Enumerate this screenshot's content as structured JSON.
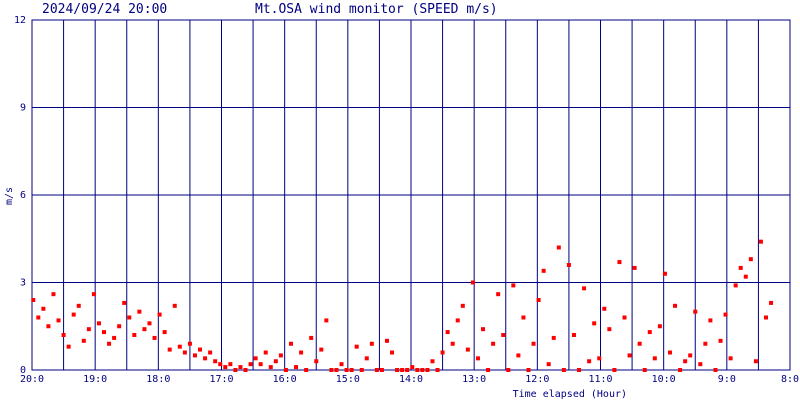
{
  "chart_data": {
    "type": "scatter",
    "timestamp": "2024/09/24 20:00",
    "title": "Mt.OSA wind monitor (SPEED m/s)",
    "ylabel": "m/s",
    "xlabel": "Time elapsed (Hour)",
    "color": "#ff0000",
    "grid_color": "#000080",
    "grid": true,
    "xlim": [
      0,
      12
    ],
    "ylim": [
      0,
      12
    ],
    "yticks": [
      0,
      3,
      6,
      9,
      12
    ],
    "xticks": [
      {
        "value": 0,
        "label": "20:0"
      },
      {
        "value": 1,
        "label": "19:0"
      },
      {
        "value": 2,
        "label": "18:0"
      },
      {
        "value": 3,
        "label": "17:0"
      },
      {
        "value": 4,
        "label": "16:0"
      },
      {
        "value": 5,
        "label": "15:0"
      },
      {
        "value": 6,
        "label": "14:0"
      },
      {
        "value": 7,
        "label": "13:0"
      },
      {
        "value": 8,
        "label": "12:0"
      },
      {
        "value": 9,
        "label": "11:0"
      },
      {
        "value": 10,
        "label": "10:0"
      },
      {
        "value": 11,
        "label": "9:0"
      },
      {
        "value": 12,
        "label": "8:0"
      }
    ],
    "xgrid": [
      0.5,
      1.5,
      2.5,
      3.5,
      4.5,
      5.5,
      6.5,
      7.5,
      8.5,
      9.5,
      10.5,
      11.5
    ],
    "x": [
      0.02,
      0.1,
      0.18,
      0.26,
      0.34,
      0.42,
      0.5,
      0.58,
      0.66,
      0.74,
      0.82,
      0.9,
      0.98,
      1.06,
      1.14,
      1.22,
      1.3,
      1.38,
      1.46,
      1.54,
      1.62,
      1.7,
      1.78,
      1.86,
      1.94,
      2.02,
      2.1,
      2.18,
      2.26,
      2.34,
      2.42,
      2.5,
      2.58,
      2.66,
      2.74,
      2.82,
      2.9,
      2.98,
      3.06,
      3.14,
      3.22,
      3.3,
      3.38,
      3.46,
      3.54,
      3.62,
      3.7,
      3.78,
      3.86,
      3.94,
      4.02,
      4.1,
      4.18,
      4.26,
      4.34,
      4.42,
      4.5,
      4.58,
      4.66,
      4.74,
      4.82,
      4.9,
      4.98,
      5.06,
      5.14,
      5.22,
      5.3,
      5.38,
      5.46,
      5.54,
      5.62,
      5.7,
      5.78,
      5.86,
      5.94,
      6.02,
      6.1,
      6.18,
      6.26,
      6.34,
      6.42,
      6.5,
      6.58,
      6.66,
      6.74,
      6.82,
      6.9,
      6.98,
      7.06,
      7.14,
      7.22,
      7.3,
      7.38,
      7.46,
      7.54,
      7.62,
      7.7,
      7.78,
      7.86,
      7.94,
      8.02,
      8.1,
      8.18,
      8.26,
      8.34,
      8.42,
      8.5,
      8.58,
      8.66,
      8.74,
      8.82,
      8.9,
      8.98,
      9.06,
      9.14,
      9.22,
      9.3,
      9.38,
      9.46,
      9.54,
      9.62,
      9.7,
      9.78,
      9.86,
      9.94,
      10.02,
      10.1,
      10.18,
      10.26,
      10.34,
      10.42,
      10.5,
      10.58,
      10.66,
      10.74,
      10.82,
      10.9,
      10.98,
      11.06,
      11.14,
      11.22,
      11.3,
      11.38,
      11.46,
      11.54,
      11.62,
      11.7
    ],
    "values": [
      2.4,
      1.8,
      2.1,
      1.5,
      2.6,
      1.7,
      1.2,
      0.8,
      1.9,
      2.2,
      1.0,
      1.4,
      2.6,
      1.6,
      1.3,
      0.9,
      1.1,
      1.5,
      2.3,
      1.8,
      1.2,
      2.0,
      1.4,
      1.6,
      1.1,
      1.9,
      1.3,
      0.7,
      2.2,
      0.8,
      0.6,
      0.9,
      0.5,
      0.7,
      0.4,
      0.6,
      0.3,
      0.2,
      0.1,
      0.2,
      0,
      0.1,
      0,
      0.2,
      0.4,
      0.2,
      0.6,
      0.1,
      0.3,
      0.5,
      0,
      0.9,
      0.1,
      0.6,
      0,
      1.1,
      0.3,
      0.7,
      1.7,
      0,
      0,
      0.2,
      0,
      0,
      0.8,
      0,
      0.4,
      0.9,
      0,
      0,
      1.0,
      0.6,
      0,
      0,
      0,
      0.1,
      0,
      0,
      0,
      0.3,
      0,
      0.6,
      1.3,
      0.9,
      1.7,
      2.2,
      0.7,
      3.0,
      0.4,
      1.4,
      0,
      0.9,
      2.6,
      1.2,
      0,
      2.9,
      0.5,
      1.8,
      0,
      0.9,
      2.4,
      3.4,
      0.2,
      1.1,
      4.2,
      0,
      3.6,
      1.2,
      0,
      2.8,
      0.3,
      1.6,
      0.4,
      2.1,
      1.4,
      0,
      3.7,
      1.8,
      0.5,
      3.5,
      0.9,
      0,
      1.3,
      0.4,
      1.5,
      3.3,
      0.6,
      2.2,
      0,
      0.3,
      0.5,
      2.0,
      0.2,
      0.9,
      1.7,
      0,
      1.0,
      1.9,
      0.4,
      2.9,
      3.5,
      3.2,
      3.8,
      0.3,
      4.4,
      1.8,
      2.3
    ]
  }
}
